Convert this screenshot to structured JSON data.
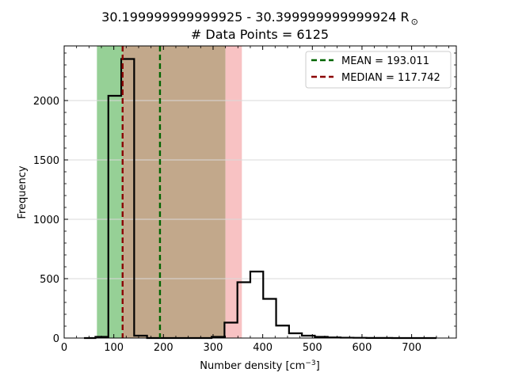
{
  "chart_data": {
    "type": "histogram",
    "title_line1": "30.199999999999925 - 30.399999999999924 R",
    "title_symbol": "⊙",
    "title_line2": "# Data Points = 6125",
    "xlabel_main": "Number density [cm",
    "xlabel_sup": "−3",
    "xlabel_end": "]",
    "ylabel": "Frequency",
    "xlim": [
      0,
      790
    ],
    "ylim": [
      0,
      2460
    ],
    "xticks": [
      0,
      100,
      200,
      300,
      400,
      500,
      600,
      700
    ],
    "yticks": [
      0,
      500,
      1000,
      1500,
      2000
    ],
    "grid": "horizontal",
    "bin_edges": [
      40,
      63,
      89,
      115,
      141,
      167,
      193,
      219,
      245,
      271,
      297,
      323,
      349,
      375,
      401,
      427,
      453,
      479,
      505,
      531,
      557,
      583,
      609,
      635,
      661,
      687,
      713,
      750
    ],
    "counts": [
      0,
      10,
      2040,
      2350,
      20,
      0,
      0,
      0,
      0,
      0,
      10,
      130,
      470,
      560,
      330,
      105,
      40,
      20,
      10,
      5,
      3,
      2,
      1,
      1,
      0,
      0,
      0
    ],
    "shaded_regions": [
      {
        "range": [
          66,
          118
        ],
        "color": "#96d096"
      },
      {
        "range": [
          118,
          325
        ],
        "color": "#c2a88b"
      },
      {
        "range": [
          325,
          358
        ],
        "color": "#f8c2c3"
      }
    ],
    "reference_lines": [
      {
        "label": "MEAN = 193.011",
        "value": 193.011,
        "color": "#006400"
      },
      {
        "label": "MEDIAN = 117.742",
        "value": 117.742,
        "color": "#8b0000"
      }
    ],
    "legend_position": "top-right"
  }
}
